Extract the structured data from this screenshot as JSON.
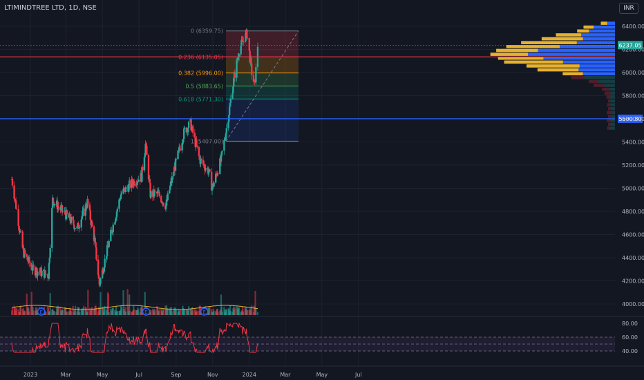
{
  "header": {
    "symbol": "LTIMINDTREE LTD, 1D, NSE",
    "currency": "INR"
  },
  "chart_data": [
    {
      "type": "candlestick",
      "x_labels": [
        "2023",
        "Mar",
        "May",
        "Jul",
        "Sep",
        "Nov",
        "2024",
        "Mar",
        "May",
        "Jul"
      ],
      "y_ticks": [
        4000,
        4200,
        4400,
        4600,
        4800,
        5000,
        5200,
        5400,
        5600,
        5800,
        6000,
        6200,
        6400
      ],
      "ylim": [
        3980,
        6440
      ],
      "y_tick_labels": [
        "4000.00",
        "4200.00",
        "4400.00",
        "4600.00",
        "4800.00",
        "5000.00",
        "5200.00",
        "5400.00",
        "5600.00",
        "5800.00",
        "6000.00",
        "6200.00",
        "6400.00"
      ],
      "last_price": {
        "value": 6237.05,
        "label": "6237.05",
        "color": "#26a69a"
      },
      "horizontal_lines": [
        {
          "value": 6135,
          "color": "#f23645"
        },
        {
          "value": 5600.8,
          "label": "5600.80",
          "color": "#2962ff"
        }
      ],
      "fibonacci": [
        {
          "level": "0",
          "price": 6359.75,
          "label": "0 (6359.75)",
          "color": "#787b86"
        },
        {
          "level": "0.236",
          "price": 6135.05,
          "label": "0.236 (6135.05)",
          "color": "#f23645"
        },
        {
          "level": "0.382",
          "price": 5996.0,
          "label": "0.382 (5996.00)",
          "color": "#ff9800"
        },
        {
          "level": "0.5",
          "price": 5883.65,
          "label": "0.5 (5883.65)",
          "color": "#4caf50"
        },
        {
          "level": "0.618",
          "price": 5771.3,
          "label": "0.618 (5771.30)",
          "color": "#089981"
        },
        {
          "level": "1",
          "price": 5407.0,
          "label": "1 (5407.00)",
          "color": "#787b86"
        }
      ],
      "price_path": [
        {
          "date": "2022-12-01",
          "close": 5080
        },
        {
          "date": "2022-12-20",
          "close": 4450
        },
        {
          "date": "2023-01-05",
          "close": 4300
        },
        {
          "date": "2023-01-31",
          "close": 4250
        },
        {
          "date": "2023-02-07",
          "close": 4900
        },
        {
          "date": "2023-02-20",
          "close": 4820
        },
        {
          "date": "2023-03-05",
          "close": 4750
        },
        {
          "date": "2023-03-20",
          "close": 4650
        },
        {
          "date": "2023-04-06",
          "close": 4880
        },
        {
          "date": "2023-04-18",
          "close": 4550
        },
        {
          "date": "2023-04-26",
          "close": 4170
        },
        {
          "date": "2023-05-15",
          "close": 4600
        },
        {
          "date": "2023-06-01",
          "close": 4950
        },
        {
          "date": "2023-06-20",
          "close": 5050
        },
        {
          "date": "2023-07-05",
          "close": 5100
        },
        {
          "date": "2023-07-12",
          "close": 5380
        },
        {
          "date": "2023-07-20",
          "close": 4950
        },
        {
          "date": "2023-08-02",
          "close": 4950
        },
        {
          "date": "2023-08-15",
          "close": 4850
        },
        {
          "date": "2023-08-28",
          "close": 5150
        },
        {
          "date": "2023-09-15",
          "close": 5500
        },
        {
          "date": "2023-09-25",
          "close": 5560
        },
        {
          "date": "2023-10-10",
          "close": 5250
        },
        {
          "date": "2023-10-25",
          "close": 5150
        },
        {
          "date": "2023-10-31",
          "close": 5000
        },
        {
          "date": "2023-11-15",
          "close": 5250
        },
        {
          "date": "2023-11-25",
          "close": 5550
        },
        {
          "date": "2023-12-05",
          "close": 5900
        },
        {
          "date": "2023-12-15",
          "close": 6200
        },
        {
          "date": "2023-12-28",
          "close": 6340
        },
        {
          "date": "2024-01-05",
          "close": 6000
        },
        {
          "date": "2024-01-10",
          "close": 5880
        },
        {
          "date": "2024-01-15",
          "close": 6237
        }
      ],
      "rsi": {
        "yticks": [
          40,
          60,
          80
        ],
        "ytick_labels": [
          "40.00",
          "60.00",
          "80.00"
        ],
        "band": [
          40,
          60
        ]
      },
      "volume_profile": {
        "rows": 28
      }
    }
  ]
}
